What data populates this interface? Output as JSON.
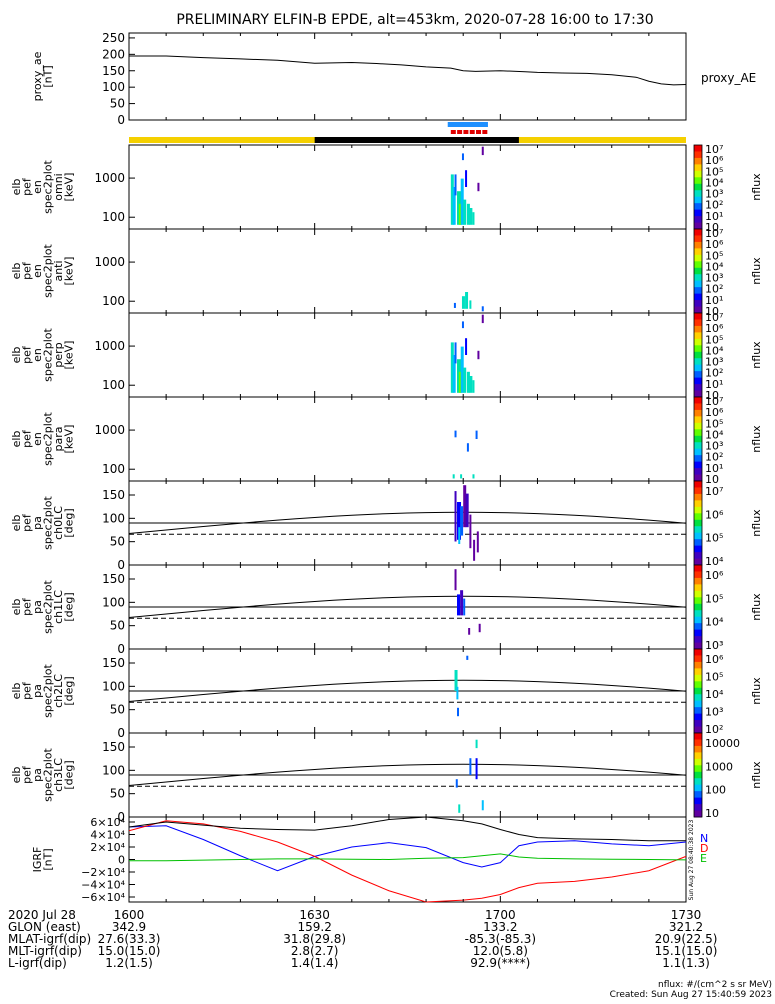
{
  "title": "PRELIMINARY ELFIN-B EPDE, alt=453km, 2020-07-28 16:00 to 17:30",
  "colors": {
    "yellow": "#f5d000",
    "blue_bar": "#1e90ff",
    "red_bar": "#e00000",
    "bx": "#0000ff",
    "by": "#ff0000",
    "bz": "#00c000",
    "btot": "#000000"
  },
  "chart_data": [
    {
      "type": "line",
      "id": "proxy_ae",
      "ylabel": [
        "proxy_ae",
        "[nT]"
      ],
      "side_label": "proxy_AE",
      "ylim": [
        0,
        265
      ],
      "yticks": [
        "250",
        "200",
        "150",
        "100",
        "50",
        "0"
      ],
      "ytick_values": [
        250,
        200,
        150,
        100,
        50,
        0
      ],
      "xlim": [
        0,
        90
      ],
      "x": [
        0,
        6,
        12,
        18,
        24,
        30,
        36,
        40,
        44,
        48,
        52,
        54,
        56,
        60,
        64,
        66,
        70,
        74,
        78,
        82,
        84,
        86,
        88,
        90
      ],
      "values": [
        195,
        195,
        190,
        186,
        182,
        173,
        175,
        172,
        168,
        162,
        158,
        150,
        148,
        150,
        147,
        145,
        143,
        142,
        138,
        130,
        118,
        110,
        107,
        108
      ]
    },
    {
      "type": "heatmap",
      "id": "omni",
      "ylabel": [
        "elb",
        "pef",
        "en",
        "spec2plot",
        "omni",
        "[keV]"
      ],
      "yticks": [
        "1000",
        "100"
      ],
      "ytick_values": [
        1000,
        100
      ],
      "ylog": [
        50,
        7000
      ],
      "cbar_label": "nflux",
      "cbar_ticks": [
        "10",
        "10¹",
        "10²",
        "10³",
        "10⁴",
        "10⁵",
        "10⁶",
        "10⁷"
      ],
      "cbar_values": [
        10,
        10,
        100,
        1000,
        10000,
        100000,
        1000000,
        10000000
      ]
    },
    {
      "type": "heatmap",
      "id": "anti",
      "ylabel": [
        "elb",
        "pef",
        "en",
        "spec2plot",
        "anti",
        "[keV]"
      ],
      "yticks": [
        "1000",
        "100"
      ],
      "ytick_values": [
        1000,
        100
      ],
      "ylog": [
        50,
        7000
      ],
      "cbar_label": "nflux",
      "cbar_ticks": [
        "10",
        "10¹",
        "10²",
        "10³",
        "10⁴",
        "10⁵",
        "10⁶",
        "10⁷"
      ],
      "cbar_values": [
        10,
        10,
        100,
        1000,
        10000,
        100000,
        1000000,
        10000000
      ]
    },
    {
      "type": "heatmap",
      "id": "perp",
      "ylabel": [
        "elb",
        "pef",
        "en",
        "spec2plot",
        "perp",
        "[keV]"
      ],
      "yticks": [
        "1000",
        "100"
      ],
      "ytick_values": [
        1000,
        100
      ],
      "ylog": [
        50,
        7000
      ],
      "cbar_label": "nflux",
      "cbar_ticks": [
        "10",
        "10¹",
        "10²",
        "10³",
        "10⁴",
        "10⁵",
        "10⁶",
        "10⁷"
      ],
      "cbar_values": [
        10,
        10,
        100,
        1000,
        10000,
        100000,
        1000000,
        10000000
      ]
    },
    {
      "type": "heatmap",
      "id": "para",
      "ylabel": [
        "elb",
        "pef",
        "en",
        "spec2plot",
        "para",
        "[keV]"
      ],
      "yticks": [
        "1000",
        "100"
      ],
      "ytick_values": [
        1000,
        100
      ],
      "ylog": [
        50,
        7000
      ],
      "cbar_label": "nflux",
      "cbar_ticks": [
        "10",
        "10¹",
        "10²",
        "10³",
        "10⁴",
        "10⁵",
        "10⁶",
        "10⁷"
      ],
      "cbar_values": [
        10,
        10,
        100,
        1000,
        10000,
        100000,
        1000000,
        10000000
      ]
    },
    {
      "type": "heatmap",
      "id": "ch0LC",
      "ylabel": [
        "elb",
        "pef",
        "pa",
        "spec2plot",
        "ch0LC",
        "[deg]"
      ],
      "yticks": [
        "150",
        "100",
        "50",
        "0"
      ],
      "ytick_values": [
        150,
        100,
        50,
        0
      ],
      "ylim": [
        0,
        180
      ],
      "cbar_label": "nflux",
      "cbar_ticks": [
        "10⁷",
        "10⁶",
        "10⁵",
        "10⁴"
      ],
      "cbar_values": [
        10000000,
        1000000,
        100000,
        10000
      ]
    },
    {
      "type": "heatmap",
      "id": "ch1LC",
      "ylabel": [
        "elb",
        "pef",
        "pa",
        "spec2plot",
        "ch1LC",
        "[deg]"
      ],
      "yticks": [
        "150",
        "100",
        "50",
        "0"
      ],
      "ytick_values": [
        150,
        100,
        50,
        0
      ],
      "ylim": [
        0,
        180
      ],
      "cbar_label": "nflux",
      "cbar_ticks": [
        "10⁶",
        "10⁵",
        "10⁴",
        "10³"
      ],
      "cbar_values": [
        1000000,
        100000,
        10000,
        1000
      ]
    },
    {
      "type": "heatmap",
      "id": "ch2LC",
      "ylabel": [
        "elb",
        "pef",
        "pa",
        "spec2plot",
        "ch2LC",
        "[deg]"
      ],
      "yticks": [
        "150",
        "100",
        "50",
        "0"
      ],
      "ytick_values": [
        150,
        100,
        50,
        0
      ],
      "ylim": [
        0,
        180
      ],
      "cbar_label": "nflux",
      "cbar_ticks": [
        "10⁶",
        "10⁵",
        "10⁴",
        "10³",
        "10²"
      ],
      "cbar_values": [
        1000000,
        100000,
        10000,
        1000,
        100
      ]
    },
    {
      "type": "heatmap",
      "id": "ch3LC",
      "ylabel": [
        "elb",
        "pef",
        "pa",
        "spec2plot",
        "ch3LC",
        "[deg]"
      ],
      "yticks": [
        "150",
        "100",
        "50",
        "0"
      ],
      "ytick_values": [
        150,
        100,
        50,
        0
      ],
      "ylim": [
        0,
        180
      ],
      "cbar_label": "nflux",
      "cbar_ticks": [
        "10000",
        "1000",
        "100",
        "10"
      ],
      "cbar_values": [
        10000,
        1000,
        100,
        10
      ]
    },
    {
      "type": "line",
      "id": "igrf",
      "ylabel": [
        "IGRF",
        "[nT]"
      ],
      "yticks": [
        "6×10⁴",
        "4×10⁴",
        "2×10⁴",
        "0",
        "−2×10⁴",
        "−4×10⁴",
        "−6×10⁴"
      ],
      "ytick_values": [
        60000,
        40000,
        20000,
        0,
        -20000,
        -40000,
        -60000
      ],
      "ylim": [
        -68000,
        68000
      ],
      "side_labels": [
        "N",
        "D",
        "E"
      ],
      "stamp": "Sun Aug 27 08:40:38 2023",
      "x": [
        0,
        6,
        12,
        18,
        24,
        30,
        36,
        42,
        48,
        54,
        57,
        60,
        63,
        66,
        72,
        78,
        84,
        90
      ],
      "series": [
        {
          "values": [
            52000,
            54000,
            32000,
            6000,
            -18000,
            5000,
            20000,
            27000,
            19000,
            -5000,
            -12000,
            -5000,
            22000,
            28000,
            30000,
            25000,
            22000,
            28000
          ]
        },
        {
          "values": [
            46000,
            62000,
            57000,
            45000,
            28000,
            5000,
            -25000,
            -50000,
            -68000,
            -65000,
            -62000,
            -56000,
            -45000,
            -38000,
            -35000,
            -28000,
            -18000,
            5000
          ]
        },
        {
          "values": [
            -2000,
            -2000,
            -1000,
            0,
            1000,
            1000,
            500,
            0,
            2000,
            3000,
            6000,
            9000,
            4000,
            2000,
            1000,
            500,
            0,
            -500
          ]
        },
        {
          "values": [
            52000,
            60000,
            55000,
            50000,
            48000,
            47000,
            54000,
            64000,
            68000,
            62000,
            57000,
            48000,
            40000,
            35000,
            33000,
            32000,
            30000,
            30000
          ]
        }
      ]
    }
  ],
  "footer": {
    "rows": [
      {
        "label": "2020 Jul 28",
        "values": [
          "1600",
          "1630",
          "1700",
          "1730"
        ]
      },
      {
        "label": "GLON (east)",
        "values": [
          "342.9",
          "159.2",
          "133.2",
          "321.2"
        ]
      },
      {
        "label": "MLAT-igrf(dip)",
        "values": [
          "27.6(33.3)",
          "31.8(29.8)",
          "-85.3(-85.3)",
          "20.9(22.5)"
        ]
      },
      {
        "label": "MLT-igrf(dip)",
        "values": [
          "15.0(15.0)",
          "2.8(2.7)",
          "12.0(5.8)",
          "15.1(15.0)"
        ]
      },
      {
        "label": "L-igrf(dip)",
        "values": [
          "1.2(1.5)",
          "1.4(1.4)",
          "92.9(****)",
          "1.1(1.3)"
        ]
      }
    ],
    "units": "nflux: #/(cm^2 s sr MeV)",
    "created": "Created: Sun Aug 27 15:40:59 2023"
  }
}
